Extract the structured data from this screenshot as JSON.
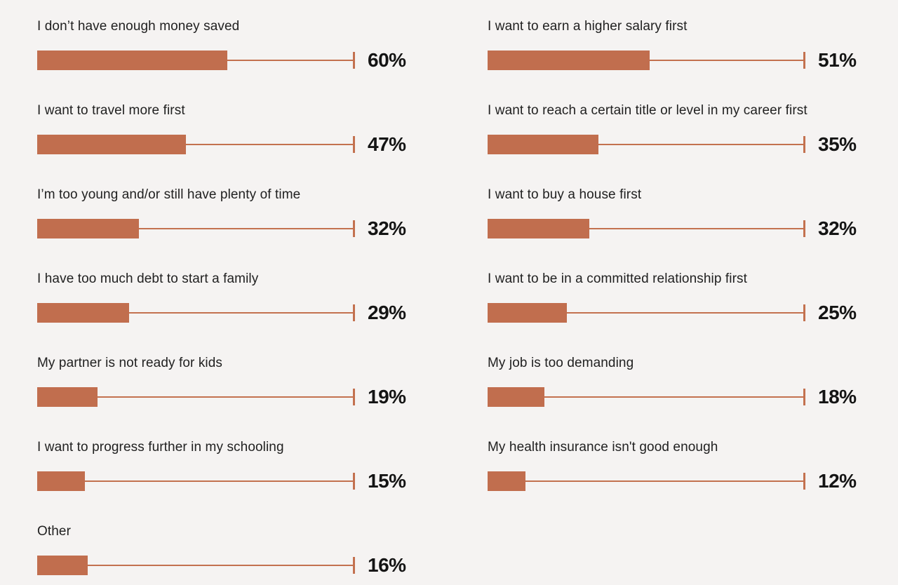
{
  "colors": {
    "background": "#f5f3f2",
    "bar_fill": "#c16e4e",
    "line": "#c3714f",
    "label_text": "#212121",
    "value_text": "#141414"
  },
  "chart_data": {
    "type": "bar",
    "orientation": "horizontal",
    "unit": "%",
    "value_range": [
      0,
      100
    ],
    "track_full_scale_note": "thin line with end tick marks 100%",
    "columns": [
      {
        "name": "left",
        "items": [
          {
            "label": "I don’t have enough money saved",
            "value": 60,
            "value_label": "60%"
          },
          {
            "label": "I want to travel more first",
            "value": 47,
            "value_label": "47%"
          },
          {
            "label": "I’m too young and/or still have plenty of time",
            "value": 32,
            "value_label": "32%"
          },
          {
            "label": "I have too much debt to start a family",
            "value": 29,
            "value_label": "29%"
          },
          {
            "label": "My partner is not ready for kids",
            "value": 19,
            "value_label": "19%"
          },
          {
            "label": "I want to progress further in my schooling",
            "value": 15,
            "value_label": "15%"
          },
          {
            "label": "Other",
            "value": 16,
            "value_label": "16%"
          }
        ]
      },
      {
        "name": "right",
        "items": [
          {
            "label": "I want to earn a higher salary first",
            "value": 51,
            "value_label": "51%"
          },
          {
            "label": "I want to reach a certain title or level in my career first",
            "value": 35,
            "value_label": "35%"
          },
          {
            "label": "I want to buy a house first",
            "value": 32,
            "value_label": "32%"
          },
          {
            "label": "I want to be in a committed relationship first",
            "value": 25,
            "value_label": "25%"
          },
          {
            "label": "My job is too demanding",
            "value": 18,
            "value_label": "18%"
          },
          {
            "label": "My health insurance isn't good enough",
            "value": 12,
            "value_label": "12%"
          }
        ]
      }
    ]
  }
}
